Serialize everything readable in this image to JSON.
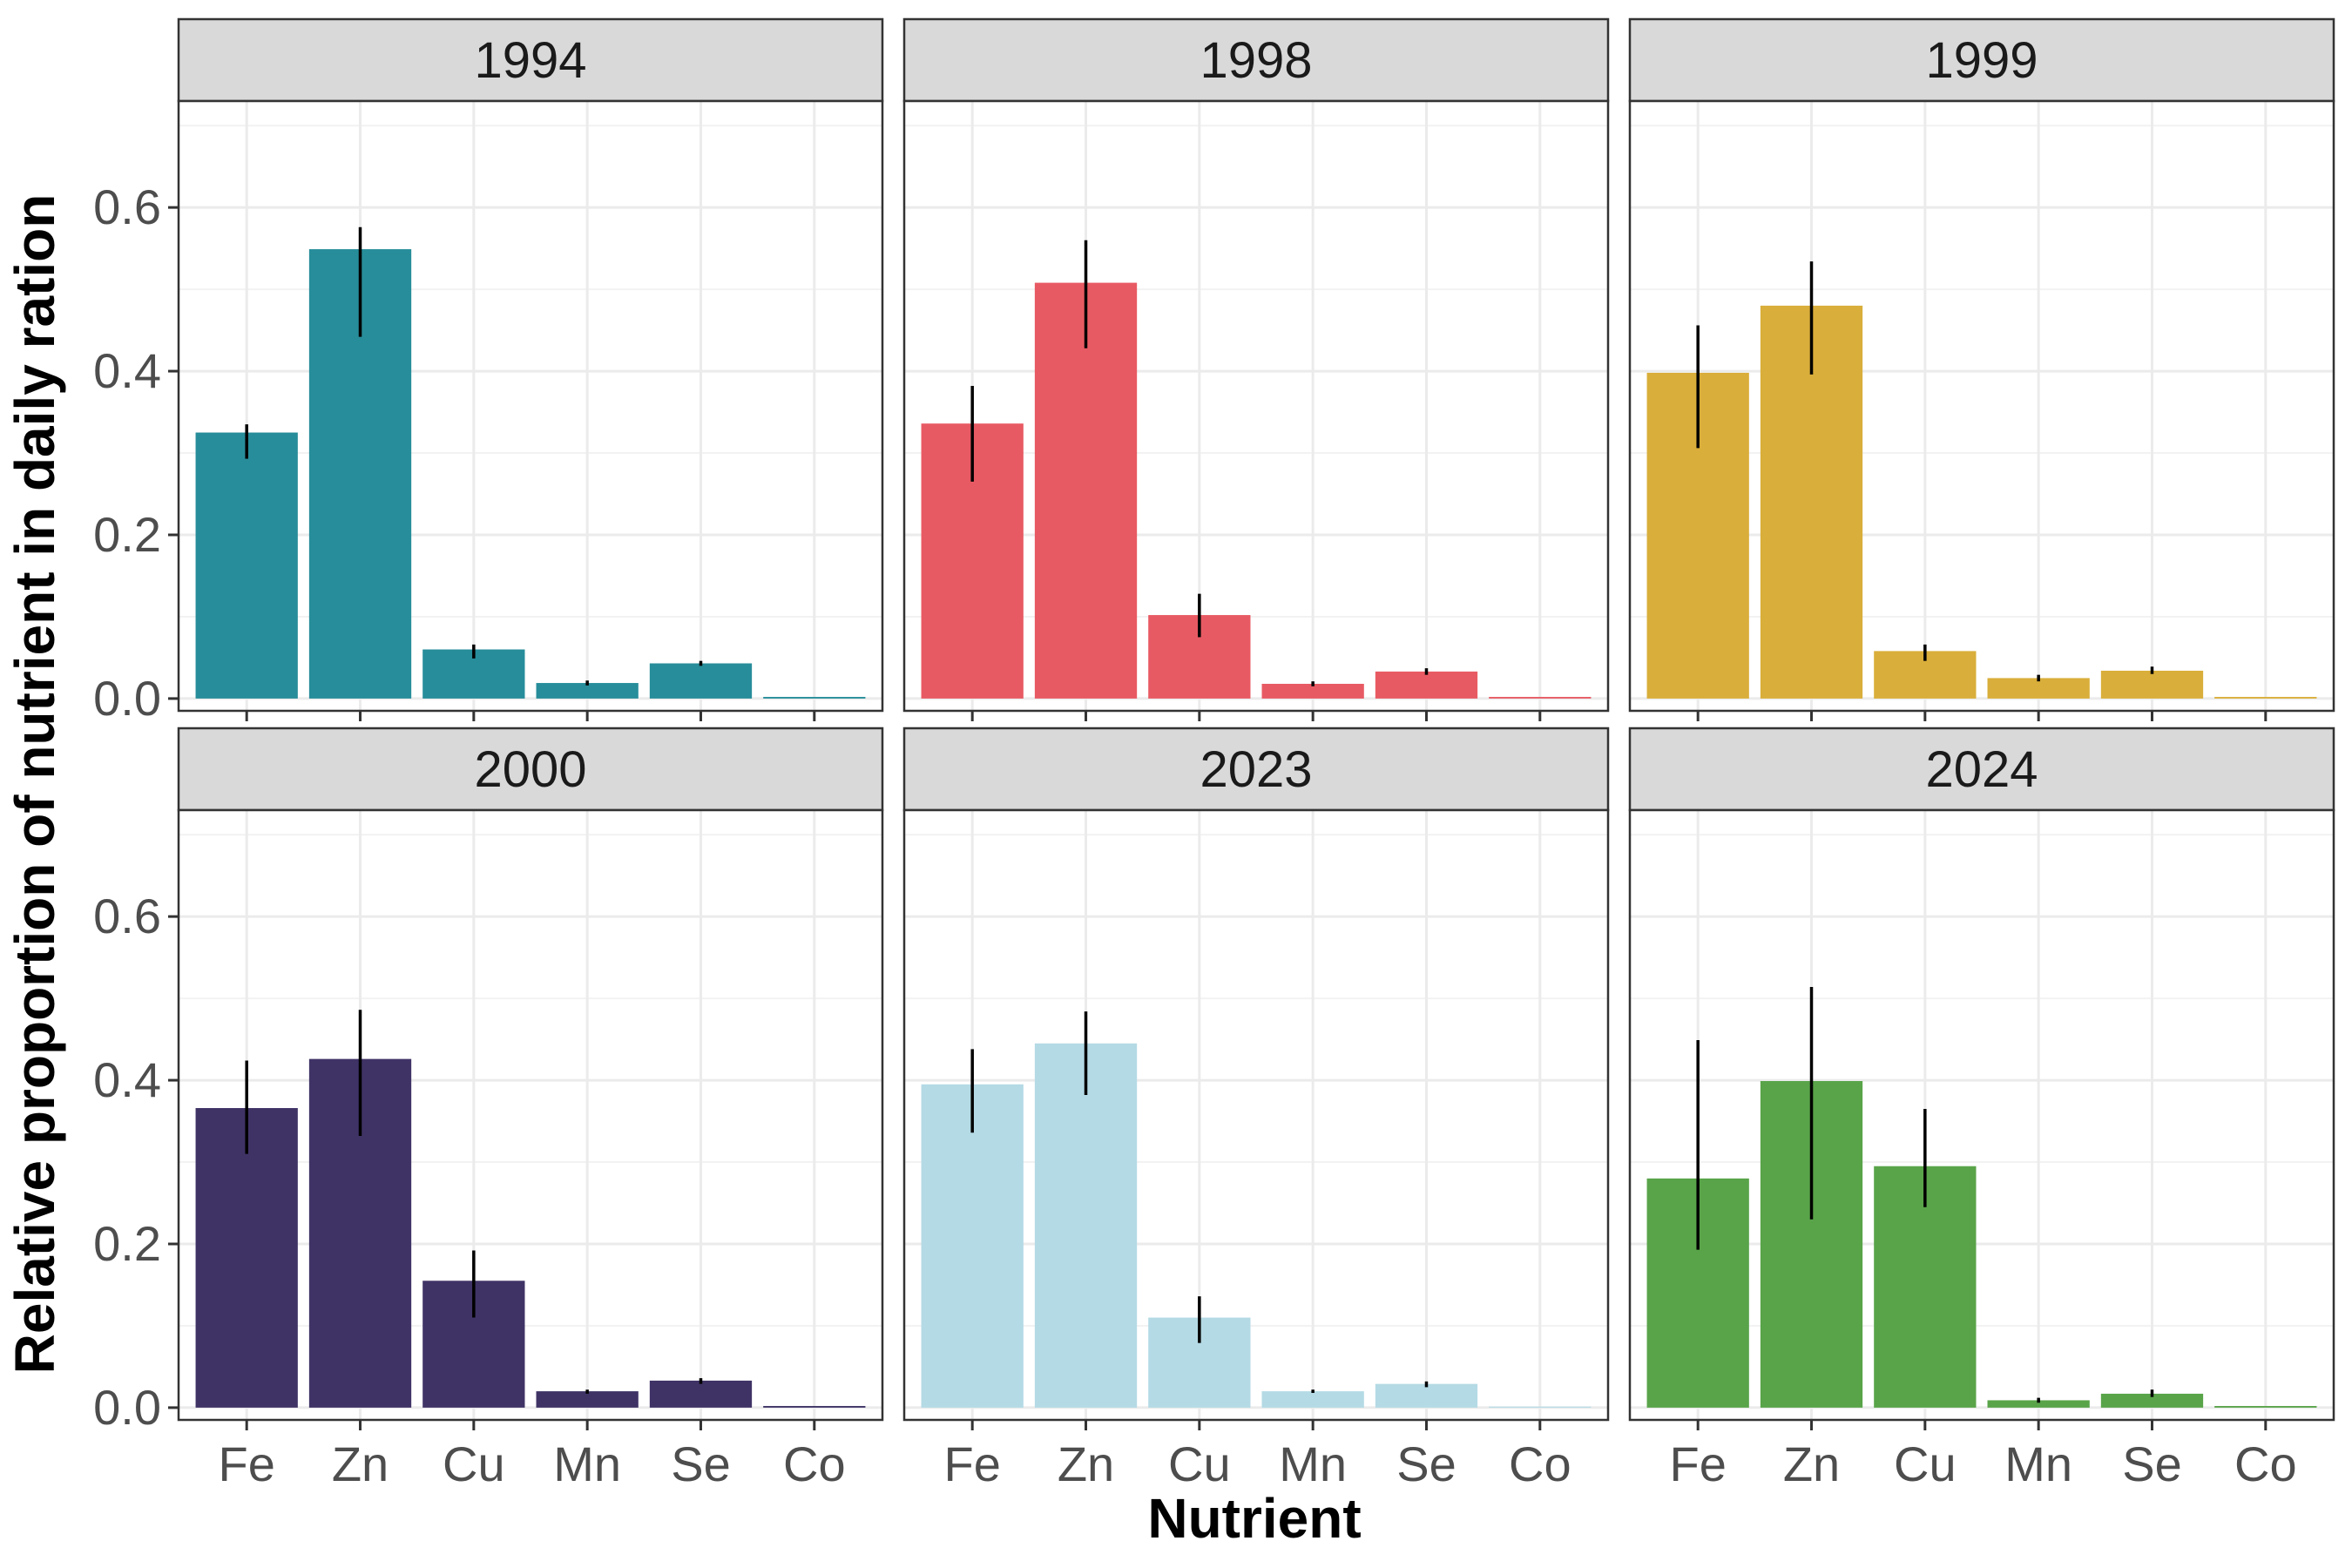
{
  "chart_data": {
    "type": "bar",
    "xlabel": "Nutrient",
    "ylabel": "Relative proportion of nutrient in daily ration",
    "ylim": [
      -0.015,
      0.73
    ],
    "y_ticks": [
      "0.0",
      "0.2",
      "0.4",
      "0.6"
    ],
    "categories": [
      "Fe",
      "Zn",
      "Cu",
      "Mn",
      "Se",
      "Co"
    ],
    "grid": true,
    "panels": [
      {
        "name": "1994",
        "color": "#278D9A",
        "values": [
          0.325,
          0.549,
          0.06,
          0.019,
          0.043,
          0.002
        ],
        "error_low": [
          0.293,
          0.442,
          0.049,
          0.016,
          0.04,
          0.002
        ],
        "error_high": [
          0.335,
          0.576,
          0.066,
          0.022,
          0.046,
          0.002
        ]
      },
      {
        "name": "1998",
        "color": "#E85A63",
        "values": [
          0.336,
          0.508,
          0.102,
          0.018,
          0.033,
          0.002
        ],
        "error_low": [
          0.265,
          0.428,
          0.075,
          0.015,
          0.029,
          0.002
        ],
        "error_high": [
          0.382,
          0.56,
          0.128,
          0.021,
          0.037,
          0.002
        ]
      },
      {
        "name": "1999",
        "color": "#D9AE3A",
        "values": [
          0.398,
          0.48,
          0.058,
          0.025,
          0.034,
          0.002
        ],
        "error_low": [
          0.306,
          0.396,
          0.046,
          0.021,
          0.03,
          0.002
        ],
        "error_high": [
          0.456,
          0.534,
          0.066,
          0.029,
          0.039,
          0.002
        ]
      },
      {
        "name": "2000",
        "color": "#3F3366",
        "values": [
          0.366,
          0.426,
          0.155,
          0.02,
          0.033,
          0.002
        ],
        "error_low": [
          0.31,
          0.332,
          0.11,
          0.017,
          0.029,
          0.002
        ],
        "error_high": [
          0.424,
          0.486,
          0.192,
          0.022,
          0.036,
          0.002
        ]
      },
      {
        "name": "2023",
        "color": "#B4DAE5",
        "values": [
          0.395,
          0.445,
          0.11,
          0.02,
          0.029,
          0.001
        ],
        "error_low": [
          0.336,
          0.382,
          0.079,
          0.018,
          0.025,
          0.001
        ],
        "error_high": [
          0.438,
          0.484,
          0.136,
          0.022,
          0.032,
          0.001
        ]
      },
      {
        "name": "2024",
        "color": "#59A449",
        "values": [
          0.28,
          0.399,
          0.295,
          0.009,
          0.017,
          0.002
        ],
        "error_low": [
          0.193,
          0.23,
          0.245,
          0.006,
          0.013,
          0.002
        ],
        "error_high": [
          0.449,
          0.514,
          0.365,
          0.012,
          0.022,
          0.002
        ]
      }
    ]
  }
}
